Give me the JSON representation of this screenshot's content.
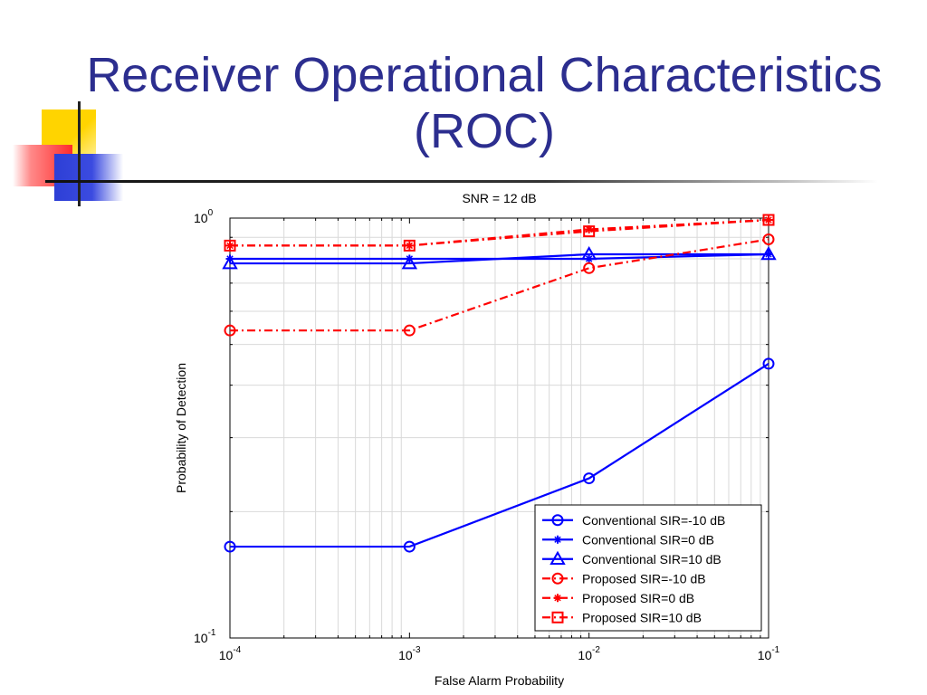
{
  "slide": {
    "title_line1": "Receiver Operational Characteristics",
    "title_line2": "(ROC)"
  },
  "chart_data": {
    "type": "line",
    "title": "SNR = 12 dB",
    "xlabel": "False Alarm Probability",
    "ylabel": "Probability of Detection",
    "xscale": "log",
    "yscale": "log",
    "xlim": [
      0.0001,
      0.1
    ],
    "ylim": [
      0.1,
      1
    ],
    "grid": true,
    "legend_position": "bottom-right",
    "x_ticks": [
      {
        "value": 0.0001,
        "base": "10",
        "exp": "-4"
      },
      {
        "value": 0.001,
        "base": "10",
        "exp": "-3"
      },
      {
        "value": 0.01,
        "base": "10",
        "exp": "-2"
      },
      {
        "value": 0.1,
        "base": "10",
        "exp": "-1"
      }
    ],
    "y_ticks": [
      {
        "value": 0.1,
        "base": "10",
        "exp": "-1"
      },
      {
        "value": 1,
        "base": "10",
        "exp": "0"
      }
    ],
    "x": [
      0.0001,
      0.001,
      0.01,
      0.1
    ],
    "series": [
      {
        "name": "Conventional SIR=-10 dB",
        "values": [
          0.165,
          0.165,
          0.24,
          0.45
        ],
        "color": "#0000ff",
        "dash": "solid",
        "marker": "circle"
      },
      {
        "name": "Conventional SIR=0 dB",
        "values": [
          0.8,
          0.8,
          0.8,
          0.82
        ],
        "color": "#0000ff",
        "dash": "solid",
        "marker": "star"
      },
      {
        "name": "Conventional SIR=10 dB",
        "values": [
          0.78,
          0.78,
          0.82,
          0.82
        ],
        "color": "#0000ff",
        "dash": "solid",
        "marker": "triangle"
      },
      {
        "name": "Proposed SIR=-10 dB",
        "values": [
          0.54,
          0.54,
          0.76,
          0.89
        ],
        "color": "#ff0000",
        "dash": "dashdot",
        "marker": "circle"
      },
      {
        "name": "Proposed SIR=0 dB",
        "values": [
          0.86,
          0.86,
          0.94,
          0.99
        ],
        "color": "#ff0000",
        "dash": "dashdot",
        "marker": "star"
      },
      {
        "name": "Proposed SIR=10 dB",
        "values": [
          0.86,
          0.86,
          0.93,
          0.99
        ],
        "color": "#ff0000",
        "dash": "dashdot",
        "marker": "square"
      }
    ]
  }
}
